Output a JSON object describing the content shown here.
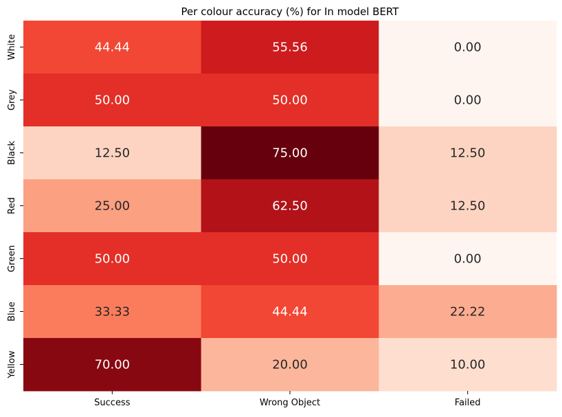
{
  "chart_data": {
    "type": "heatmap",
    "title": "Per colour accuracy (%) for In model BERT",
    "xlabel": "",
    "ylabel": "",
    "columns": [
      "Success",
      "Wrong Object",
      "Failed"
    ],
    "rows": [
      "White",
      "Grey",
      "Black",
      "Red",
      "Green",
      "Blue",
      "Yellow"
    ],
    "values": [
      [
        44.44,
        55.56,
        0.0
      ],
      [
        50.0,
        50.0,
        0.0
      ],
      [
        12.5,
        75.0,
        12.5
      ],
      [
        25.0,
        62.5,
        12.5
      ],
      [
        50.0,
        50.0,
        0.0
      ],
      [
        33.33,
        44.44,
        22.22
      ],
      [
        70.0,
        20.0,
        10.0
      ]
    ],
    "cell_labels": [
      [
        "44.44",
        "55.56",
        "0.00"
      ],
      [
        "50.00",
        "50.00",
        "0.00"
      ],
      [
        "12.50",
        "75.00",
        "12.50"
      ],
      [
        "25.00",
        "62.50",
        "12.50"
      ],
      [
        "50.00",
        "50.00",
        "0.00"
      ],
      [
        "33.33",
        "44.44",
        "22.22"
      ],
      [
        "70.00",
        "20.00",
        "10.00"
      ]
    ],
    "color_range": [
      0,
      75
    ],
    "colormap": "Reds",
    "colorbar": false,
    "grid": false
  }
}
